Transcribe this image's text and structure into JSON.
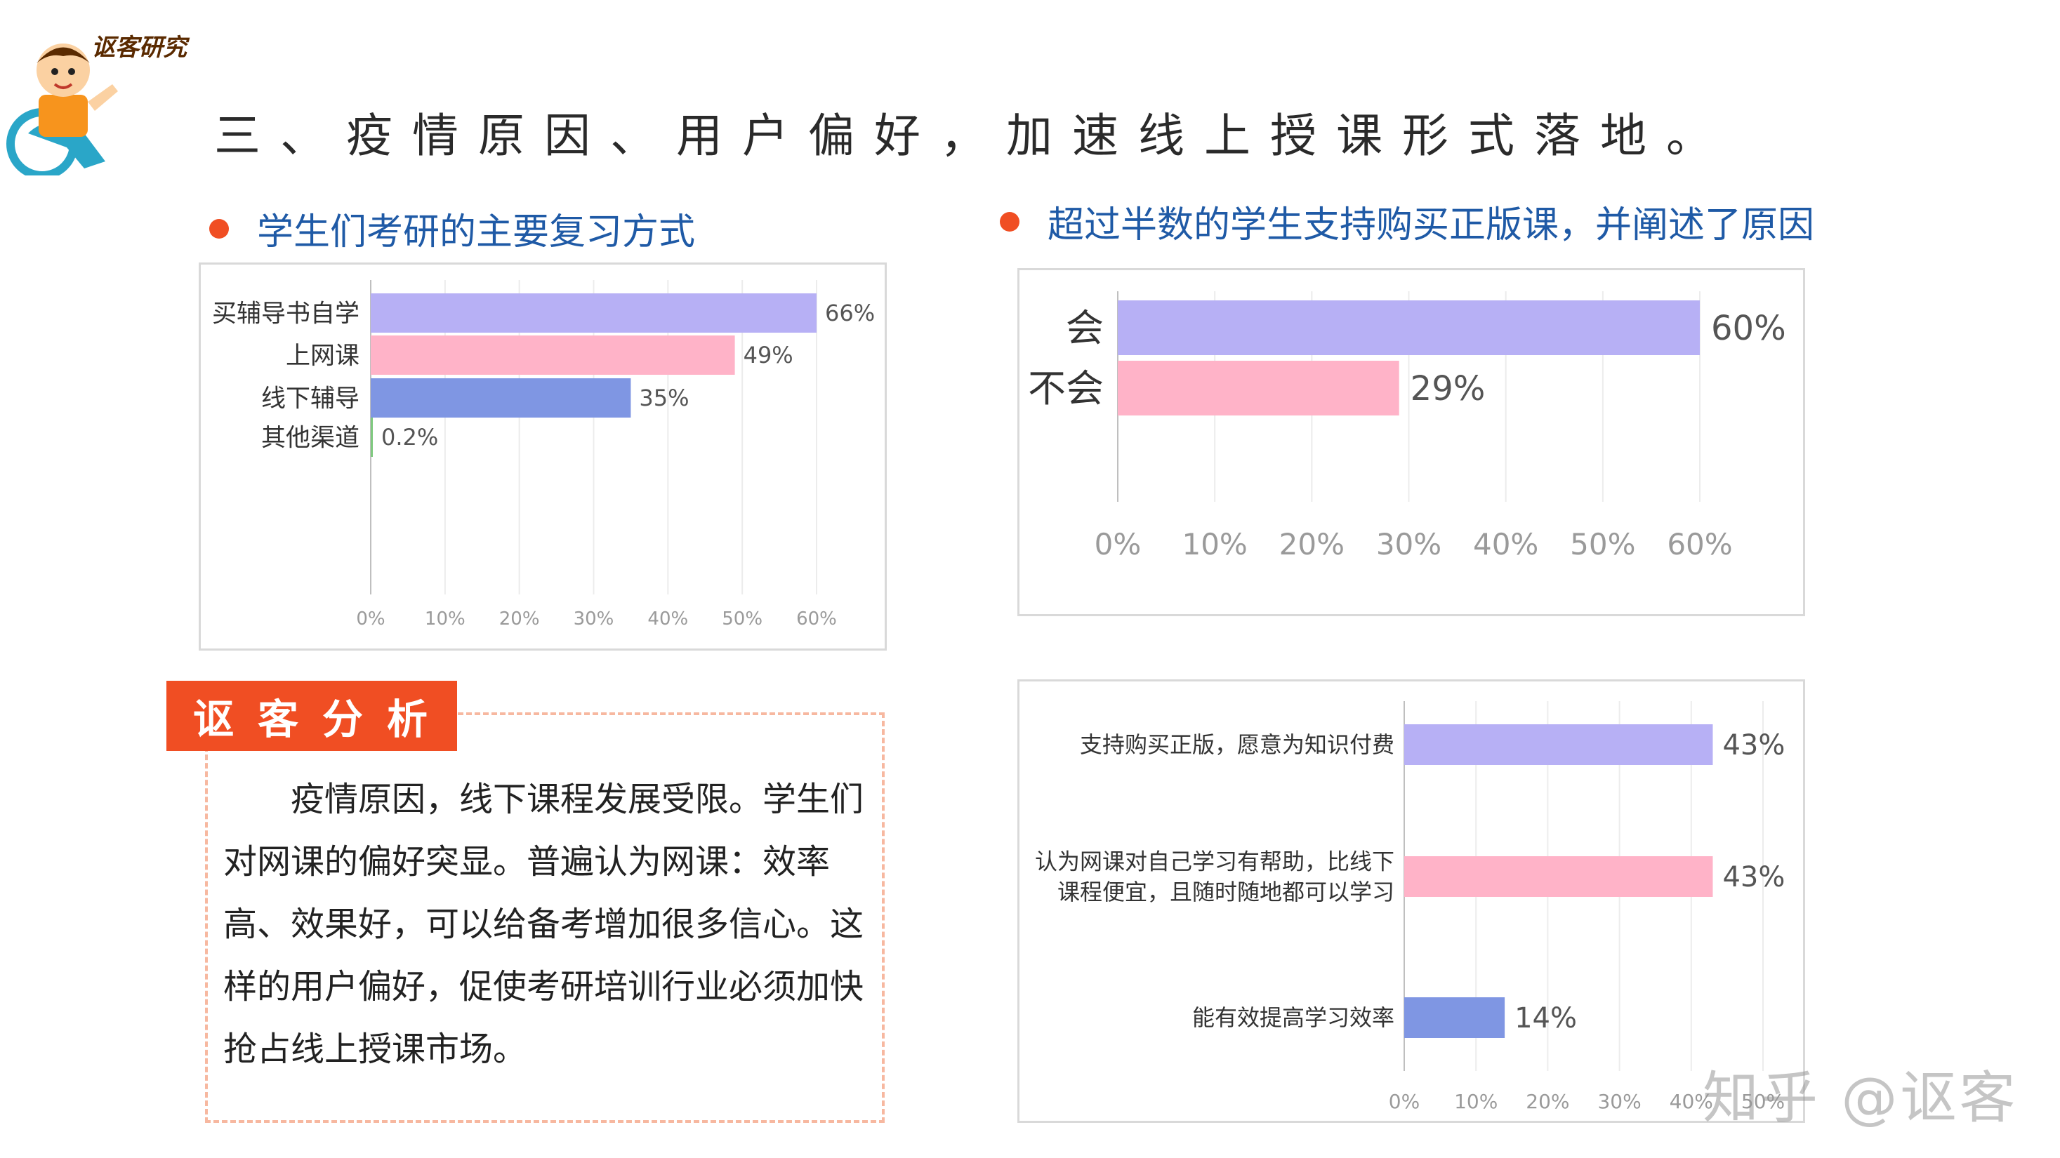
{
  "header": {
    "brand": "讴客研究",
    "title": "三、疫情原因、用户偏好，加速线上授课形式落地。"
  },
  "sections": {
    "left_heading": "学生们考研的主要复习方式",
    "right_heading": "超过半数的学生支持购买正版课，并阐述了原因"
  },
  "analysis": {
    "tag": "讴客分析",
    "text": "　　疫情原因，线下课程发展受限。学生们对网课的偏好突显。普遍认为网课：效率高、效果好，可以给备考增加很多信心。这样的用户偏好，促使考研培训行业必须加快抢占线上授课市场。"
  },
  "watermark": "知乎 @讴客",
  "colors": {
    "accent": "#f04e23",
    "heading_blue": "#1f5aa6",
    "bar_lavender": "#b7b0f5",
    "bar_pink": "#ffb3c8",
    "bar_blue": "#7f96e3",
    "bar_green": "#7fc97f"
  },
  "chart_data": [
    {
      "type": "bar",
      "orientation": "horizontal",
      "categories": [
        "买辅导书自学",
        "上网课",
        "线下辅导",
        "其他渠道"
      ],
      "values": [
        66,
        49,
        35,
        0.2
      ],
      "value_labels": [
        "66%",
        "49%",
        "35%",
        "0.2%"
      ],
      "bar_colors": [
        "#b7b0f5",
        "#ffb3c8",
        "#7f96e3",
        "#7fc97f"
      ],
      "xlim": [
        0,
        60
      ],
      "xticks": [
        "0%",
        "10%",
        "20%",
        "30%",
        "40%",
        "50%",
        "60%"
      ],
      "grid": true,
      "title": "",
      "xlabel": "",
      "ylabel": ""
    },
    {
      "type": "bar",
      "orientation": "horizontal",
      "categories": [
        "会",
        "不会"
      ],
      "values": [
        60,
        29
      ],
      "value_labels": [
        "60%",
        "29%"
      ],
      "bar_colors": [
        "#b7b0f5",
        "#ffb3c8"
      ],
      "xlim": [
        0,
        60
      ],
      "xticks": [
        "0%",
        "10%",
        "20%",
        "30%",
        "40%",
        "50%",
        "60%"
      ],
      "grid": true,
      "title": "",
      "xlabel": "",
      "ylabel": ""
    },
    {
      "type": "bar",
      "orientation": "horizontal",
      "categories": [
        "支持购买正版，愿意为知识付费",
        "认为网课对自己学习有帮助，比线下课程便宜，且随时随地都可以学习",
        "能有效提高学习效率"
      ],
      "category_lines": [
        [
          "支持购买正版，愿意为知识付费"
        ],
        [
          "认为网课对自己学习有帮助，比线下",
          "课程便宜，且随时随地都可以学习"
        ],
        [
          "能有效提高学习效率"
        ]
      ],
      "values": [
        43,
        43,
        14
      ],
      "value_labels": [
        "43%",
        "43%",
        "14%"
      ],
      "bar_colors": [
        "#b7b0f5",
        "#ffb3c8",
        "#7f96e3"
      ],
      "xlim": [
        0,
        50
      ],
      "xticks": [
        "0%",
        "10%",
        "20%",
        "30%",
        "40%",
        "50%"
      ],
      "grid": true,
      "title": "",
      "xlabel": "",
      "ylabel": ""
    }
  ]
}
